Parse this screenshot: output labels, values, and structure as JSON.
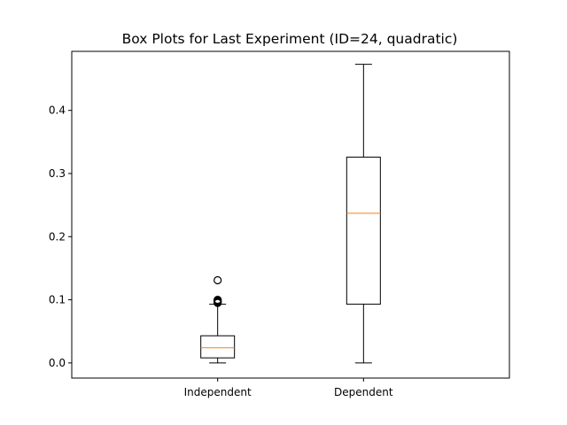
{
  "chart_data": {
    "type": "box",
    "title": "Box Plots for Last Experiment (ID=24, quadratic)",
    "xlabel": "",
    "ylabel": "",
    "ylim": [
      -0.024,
      0.4935
    ],
    "yticks": [
      "0.0",
      "0.1",
      "0.2",
      "0.3",
      "0.4"
    ],
    "categories": [
      "Independent",
      "Dependent"
    ],
    "boxes": [
      {
        "name": "Independent",
        "whisker_low": 0.0,
        "q1": 0.008,
        "median": 0.024,
        "q3": 0.043,
        "whisker_high": 0.093,
        "outliers": [
          0.095,
          0.096,
          0.097,
          0.098,
          0.099,
          0.1,
          0.131
        ]
      },
      {
        "name": "Dependent",
        "whisker_low": 0.0,
        "q1": 0.093,
        "median": 0.237,
        "q3": 0.326,
        "whisker_high": 0.473,
        "outliers": []
      }
    ],
    "grid": false,
    "colors": {
      "box": "#000000",
      "median": "#ff7f0e",
      "outlier": "#000000"
    }
  }
}
